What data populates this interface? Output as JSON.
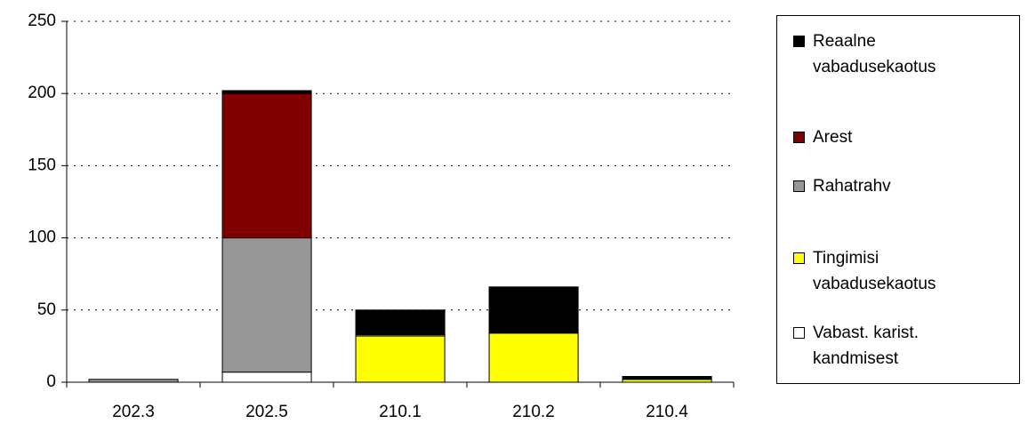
{
  "chart_data": {
    "type": "stacked_bar",
    "categories": [
      "202.3",
      "202.5",
      "210.1",
      "210.2",
      "210.4"
    ],
    "series": [
      {
        "name": "Vabast. karist. kandmisest",
        "color": "#ffffff",
        "values": [
          0,
          7,
          0,
          0,
          0
        ]
      },
      {
        "name": "Tingimisi vabadusekaotus",
        "color": "#ffff00",
        "values": [
          0,
          0,
          32,
          34,
          2
        ]
      },
      {
        "name": "Rahatrahv",
        "color": "#969696",
        "values": [
          2,
          93,
          1,
          0,
          0
        ]
      },
      {
        "name": "Arest",
        "color": "#800000",
        "values": [
          0,
          100,
          0,
          0,
          0
        ]
      },
      {
        "name": "Reaalne vabadusekaotus",
        "color": "#000000",
        "values": [
          0,
          2,
          17,
          32,
          2
        ]
      }
    ],
    "ylim": [
      0,
      250
    ],
    "yticks": [
      0,
      50,
      100,
      150,
      200,
      250
    ],
    "grid": true,
    "legend": "right"
  }
}
